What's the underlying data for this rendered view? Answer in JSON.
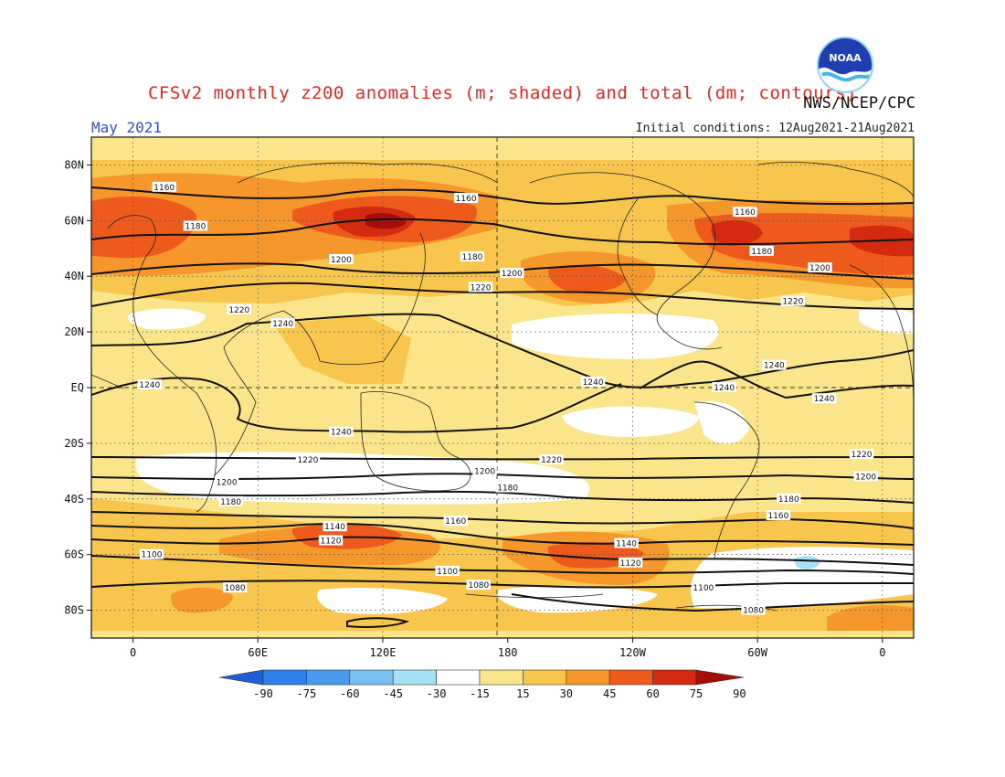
{
  "title": "CFSv2 monthly z200 anomalies (m; shaded) and total (dm; contours)",
  "agency": "NWS/NCEP/CPC",
  "logo_text": "NOAA",
  "month": "May 2021",
  "initial_conditions": "Initial conditions: 12Aug2021-21Aug2021",
  "colors": {
    "title": "#e8261f",
    "month": "#2b4fe0",
    "bins": [
      "#1e5fd6",
      "#2f7fe8",
      "#4a9aee",
      "#78c0f2",
      "#a6e0f4",
      "#ffffff",
      "#fbe58a",
      "#f8c54d",
      "#f5972b",
      "#ee5a1c",
      "#d42a10",
      "#a50d08"
    ]
  },
  "chart_data": {
    "type": "map",
    "projection": "equirectangular",
    "lon_range": [
      -20,
      375
    ],
    "lat_range": [
      -90,
      90
    ],
    "x_ticks": [
      "0",
      "60E",
      "120E",
      "180",
      "120W",
      "60W",
      "0"
    ],
    "y_ticks": [
      "80N",
      "60N",
      "40N",
      "20N",
      "EQ",
      "20S",
      "40S",
      "60S",
      "80S"
    ],
    "colorbar_levels": [
      "-90",
      "-75",
      "-60",
      "-45",
      "-30",
      "-15",
      "15",
      "30",
      "45",
      "60",
      "75",
      "90"
    ],
    "anomaly_shading_m": "mostly 15-30 m positive everywhere; 60-90 m maxima over northern Asia (~130E, 60N), northern Europe/North Atlantic (0-20E, 55N and 330E, 50N), North Pacific (~200-230E, 40N) and Southern Ocean bands near 60S (~90E and ~240E); near-zero (-15 to 15 m) bands in southern mid-latitudes and tropical eastern Pacific; small -30 m area near 330E, 65S",
    "contour_labels_dm": [
      {
        "value": "1160",
        "lon": 15,
        "lat": 72
      },
      {
        "value": "1180",
        "lon": 30,
        "lat": 58
      },
      {
        "value": "1160",
        "lon": 160,
        "lat": 68
      },
      {
        "value": "1200",
        "lon": 100,
        "lat": 46
      },
      {
        "value": "1180",
        "lon": 163,
        "lat": 47
      },
      {
        "value": "1220",
        "lon": 51,
        "lat": 28
      },
      {
        "value": "1240",
        "lon": 72,
        "lat": 23
      },
      {
        "value": "1220",
        "lon": 167,
        "lat": 36
      },
      {
        "value": "1200",
        "lon": 182,
        "lat": 41
      },
      {
        "value": "1160",
        "lon": 294,
        "lat": 63
      },
      {
        "value": "1180",
        "lon": 302,
        "lat": 49
      },
      {
        "value": "1200",
        "lon": 330,
        "lat": 43
      },
      {
        "value": "1220",
        "lon": 317,
        "lat": 31
      },
      {
        "value": "1240",
        "lon": 308,
        "lat": 8
      },
      {
        "value": "1240",
        "lon": 221,
        "lat": 2
      },
      {
        "value": "1240",
        "lon": 284,
        "lat": 0
      },
      {
        "value": "1240",
        "lon": 332,
        "lat": -4
      },
      {
        "value": "1240",
        "lon": 8,
        "lat": 1
      },
      {
        "value": "1240",
        "lon": 100,
        "lat": -16
      },
      {
        "value": "1220",
        "lon": 84,
        "lat": -26
      },
      {
        "value": "1200",
        "lon": 45,
        "lat": -34
      },
      {
        "value": "1180",
        "lon": 47,
        "lat": -41
      },
      {
        "value": "1200",
        "lon": 169,
        "lat": -30
      },
      {
        "value": "1220",
        "lon": 201,
        "lat": -26
      },
      {
        "value": "1180",
        "lon": 180,
        "lat": -36
      },
      {
        "value": "1160",
        "lon": 155,
        "lat": -48
      },
      {
        "value": "1140",
        "lon": 97,
        "lat": -50
      },
      {
        "value": "1120",
        "lon": 95,
        "lat": -55
      },
      {
        "value": "1100",
        "lon": 9,
        "lat": -60
      },
      {
        "value": "1100",
        "lon": 151,
        "lat": -66
      },
      {
        "value": "1080",
        "lon": 49,
        "lat": -72
      },
      {
        "value": "1080",
        "lon": 166,
        "lat": -71
      },
      {
        "value": "1140",
        "lon": 237,
        "lat": -56
      },
      {
        "value": "1120",
        "lon": 239,
        "lat": -63
      },
      {
        "value": "1100",
        "lon": 274,
        "lat": -72
      },
      {
        "value": "1080",
        "lon": 298,
        "lat": -80
      },
      {
        "value": "1220",
        "lon": 350,
        "lat": -24
      },
      {
        "value": "1200",
        "lon": 352,
        "lat": -32
      },
      {
        "value": "1180",
        "lon": 315,
        "lat": -40
      },
      {
        "value": "1160",
        "lon": 310,
        "lat": -46
      }
    ]
  }
}
